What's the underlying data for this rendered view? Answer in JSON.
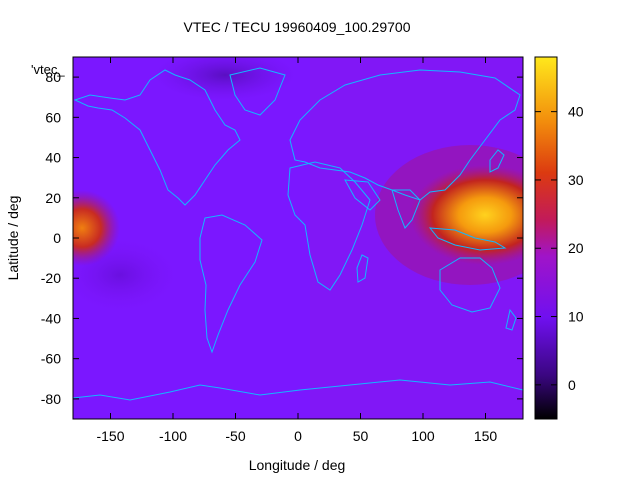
{
  "chart_data": {
    "type": "heatmap",
    "title": "VTEC / TECU 19960409_100.29700",
    "xlabel": "Longitude / deg",
    "ylabel": "Latitude / deg",
    "xlim": [
      -180,
      180
    ],
    "ylim": [
      -90,
      90
    ],
    "x_ticks": [
      -150,
      -100,
      -50,
      0,
      50,
      100,
      150
    ],
    "y_ticks": [
      -80,
      -60,
      -40,
      -20,
      0,
      20,
      40,
      60,
      80
    ],
    "colorbar": {
      "range": [
        -5,
        48
      ],
      "ticks": [
        0,
        10,
        20,
        30,
        40
      ],
      "colormap": "black-purple-red-orange-yellow"
    },
    "series_label": "'vtec_",
    "background_value": 8,
    "features": [
      {
        "type": "maximum",
        "lon": 160,
        "lat": 8,
        "value": 42
      },
      {
        "type": "enhancement",
        "lon": 140,
        "lat": 10,
        "value": 25
      },
      {
        "type": "enhancement",
        "lon": -178,
        "lat": 5,
        "value": 28
      },
      {
        "type": "minimum",
        "lon": -60,
        "lat": 78,
        "value": 4
      },
      {
        "type": "minimum",
        "lon": -120,
        "lat": -25,
        "value": 5
      }
    ],
    "overlay": "coastlines",
    "grid": false,
    "colors": {
      "coastline": "#00bfff",
      "background_field": "#7f1bff"
    }
  }
}
